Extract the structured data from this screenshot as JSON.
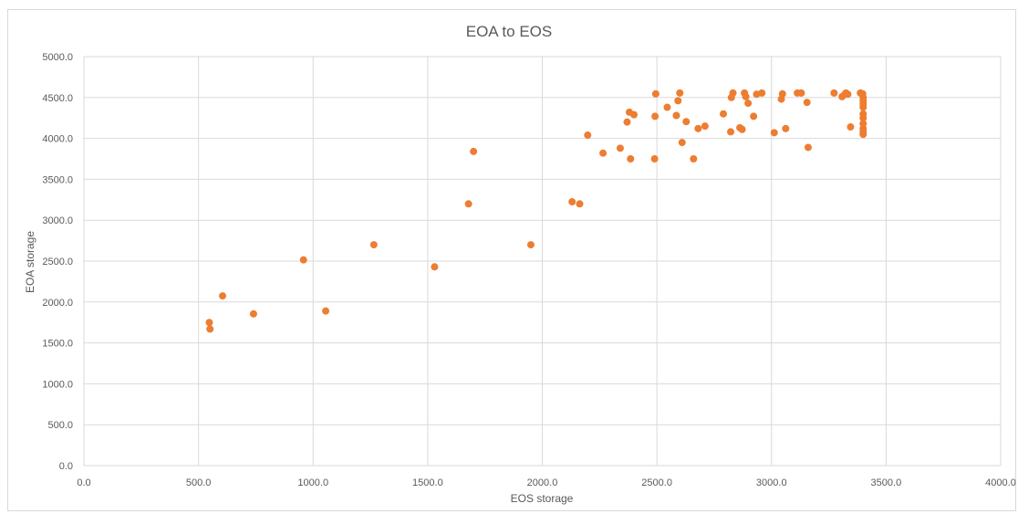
{
  "chart_data": {
    "type": "scatter",
    "title": "EOA to EOS",
    "xlabel": "EOS storage",
    "ylabel": "EOA storage",
    "xlim": [
      0,
      4000
    ],
    "ylim": [
      0,
      5000
    ],
    "xticks": [
      "0.0",
      "500.0",
      "1000.0",
      "1500.0",
      "2000.0",
      "2500.0",
      "3000.0",
      "3500.0",
      "4000.0"
    ],
    "yticks": [
      "0.0",
      "500.0",
      "1000.0",
      "1500.0",
      "2000.0",
      "2500.0",
      "3000.0",
      "3500.0",
      "4000.0",
      "4500.0",
      "5000.0"
    ],
    "grid": true,
    "legend": false,
    "marker_color": "#ED7D31",
    "grid_color": "#d9d9d9",
    "series": [
      {
        "points": [
          [
            547,
            1750
          ],
          [
            550,
            1670
          ],
          [
            605,
            2075
          ],
          [
            740,
            1855
          ],
          [
            958,
            2515
          ],
          [
            1055,
            1890
          ],
          [
            1265,
            2700
          ],
          [
            1530,
            2430
          ],
          [
            1678,
            3200
          ],
          [
            1700,
            3840
          ],
          [
            1950,
            2700
          ],
          [
            2130,
            3225
          ],
          [
            2163,
            3200
          ],
          [
            2198,
            4040
          ],
          [
            2265,
            3820
          ],
          [
            2340,
            3880
          ],
          [
            2370,
            4200
          ],
          [
            2380,
            4320
          ],
          [
            2385,
            3750
          ],
          [
            2400,
            4290
          ],
          [
            2490,
            3750
          ],
          [
            2492,
            4270
          ],
          [
            2495,
            4545
          ],
          [
            2545,
            4380
          ],
          [
            2585,
            4280
          ],
          [
            2592,
            4460
          ],
          [
            2600,
            4555
          ],
          [
            2610,
            3950
          ],
          [
            2628,
            4205
          ],
          [
            2660,
            3750
          ],
          [
            2680,
            4120
          ],
          [
            2710,
            4150
          ],
          [
            2790,
            4300
          ],
          [
            2822,
            4080
          ],
          [
            2825,
            4500
          ],
          [
            2832,
            4555
          ],
          [
            2862,
            4130
          ],
          [
            2872,
            4110
          ],
          [
            2882,
            4555
          ],
          [
            2888,
            4510
          ],
          [
            2898,
            4430
          ],
          [
            2922,
            4270
          ],
          [
            2935,
            4540
          ],
          [
            2958,
            4555
          ],
          [
            3012,
            4070
          ],
          [
            3043,
            4480
          ],
          [
            3048,
            4545
          ],
          [
            3062,
            4120
          ],
          [
            3113,
            4555
          ],
          [
            3130,
            4555
          ],
          [
            3155,
            4440
          ],
          [
            3160,
            3890
          ],
          [
            3273,
            4555
          ],
          [
            3308,
            4510
          ],
          [
            3320,
            4540
          ],
          [
            3325,
            4555
          ],
          [
            3333,
            4540
          ],
          [
            3345,
            4140
          ],
          [
            3388,
            4555
          ],
          [
            3398,
            4545
          ],
          [
            3400,
            4500
          ],
          [
            3400,
            4460
          ],
          [
            3400,
            4420
          ],
          [
            3400,
            4380
          ],
          [
            3400,
            4300
          ],
          [
            3400,
            4250
          ],
          [
            3400,
            4180
          ],
          [
            3400,
            4120
          ],
          [
            3400,
            4080
          ],
          [
            3400,
            4050
          ]
        ]
      }
    ]
  }
}
